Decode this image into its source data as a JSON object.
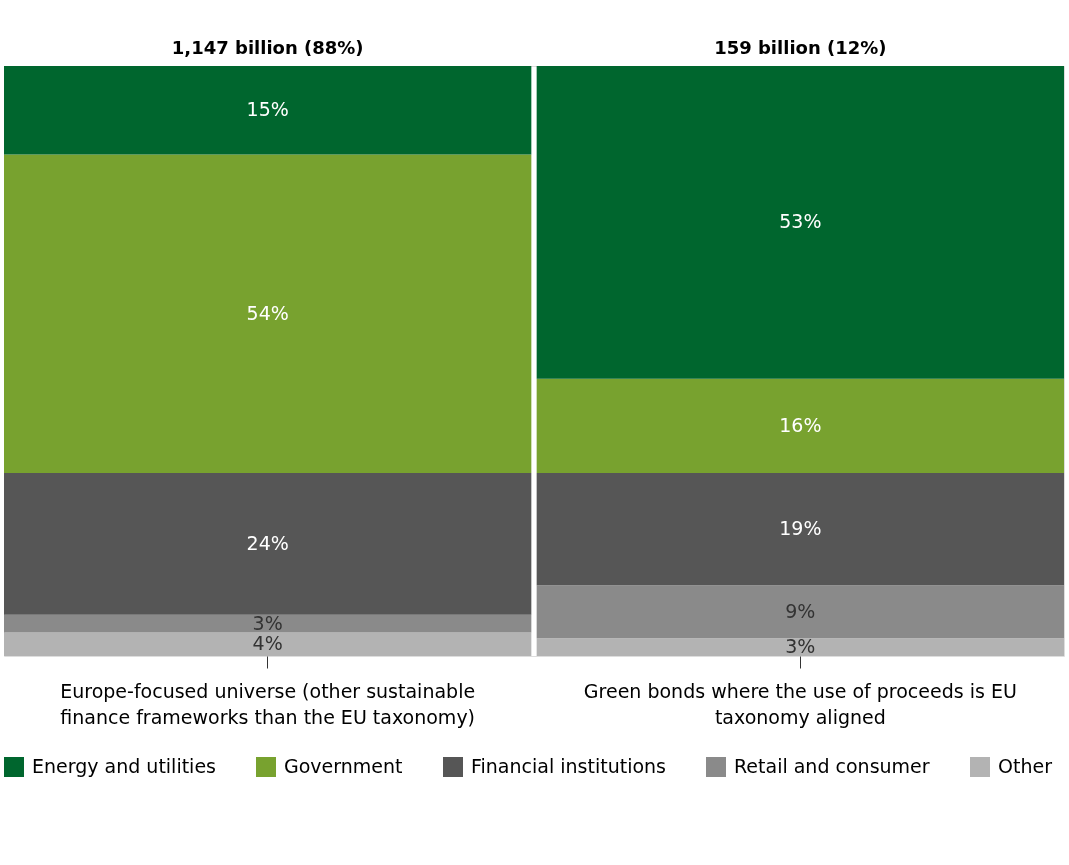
{
  "chart_data": {
    "type": "bar",
    "stacked": true,
    "categories": [
      "Europe-focused universe (other sustainable finance frameworks than the EU taxonomy)",
      "Green bonds where the use of proceeds is EU taxonomy aligned"
    ],
    "totals": [
      "1,147 billion (88%)",
      "159 billion (12%)"
    ],
    "series": [
      {
        "name": "Other",
        "color": "#b3b3b3",
        "values": [
          4,
          3
        ],
        "value_labels": [
          "4%",
          "3%"
        ]
      },
      {
        "name": "Retail and consumer",
        "color": "#8a8a8a",
        "values": [
          3,
          9
        ],
        "value_labels": [
          "3%",
          "9%"
        ]
      },
      {
        "name": "Financial institutions",
        "color": "#565656",
        "values": [
          24,
          19
        ],
        "value_labels": [
          "24%",
          "19%"
        ]
      },
      {
        "name": "Government",
        "color": "#78a22f",
        "values": [
          54,
          16
        ],
        "value_labels": [
          "54%",
          "16%"
        ]
      },
      {
        "name": "Energy and utilities",
        "color": "#00662e",
        "values": [
          15,
          53
        ],
        "value_labels": [
          "15%",
          "53%"
        ]
      }
    ],
    "tick_labels": "x",
    "legend": "bottom"
  }
}
